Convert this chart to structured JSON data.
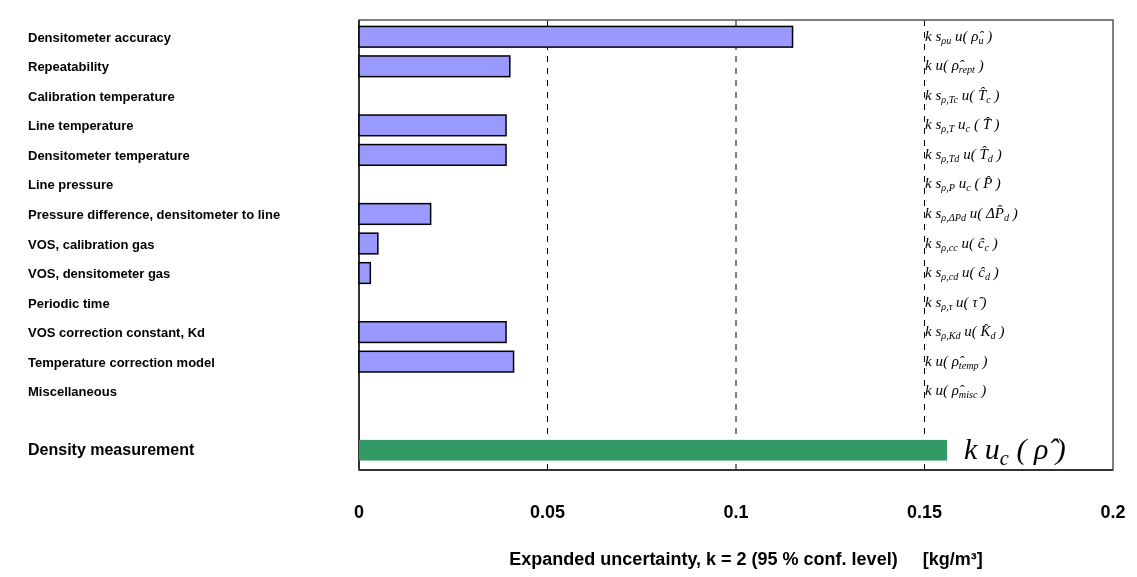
{
  "chart_data": {
    "type": "bar",
    "orientation": "horizontal",
    "categories": [
      "Densitometer accuracy",
      "Repeatability",
      "Calibration temperature",
      "Line temperature",
      "Densitometer temperature",
      "Line pressure",
      "Pressure difference, densitometer to line",
      "VOS, calibration gas",
      "VOS, densitometer gas",
      "Periodic time",
      "VOS correction constant, Kd",
      "Temperature correction model",
      "Miscellaneous",
      null,
      "Density measurement"
    ],
    "values": [
      0.115,
      0.04,
      null,
      0.039,
      0.039,
      null,
      0.019,
      0.005,
      0.003,
      null,
      0.039,
      0.041,
      null,
      null,
      0.156
    ],
    "colors": [
      "#9999ff",
      "#9999ff",
      null,
      "#9999ff",
      "#9999ff",
      null,
      "#9999ff",
      "#9999ff",
      "#9999ff",
      null,
      "#9999ff",
      "#9999ff",
      null,
      null,
      "#339966"
    ],
    "xlim": [
      0,
      0.2
    ],
    "xticks": [
      0,
      0.05,
      0.1,
      0.15,
      0.2
    ],
    "xlabel": "Expanded uncertainty, k = 2 (95 % conf. level)     [kg/m³]",
    "grid": "x",
    "line_style": "dashed",
    "annotations": [
      "k s$_{ρu}$ u( ρ̂$_{u}$ )",
      "k u( ρ̂$_{rept}$ )",
      "k s$_{ρ,Tc}$ u( T̂$_{c}$ )",
      "k s$_{ρ,T}$ u$_{c}$ ( T̂ )",
      "k s$_{ρ,Td}$ u( T̂$_{d}$ )",
      "k s$_{ρ,P}$ u$_{c}$ ( P̂ )",
      "k s$_{ρ,ΔPd}$ u( ΔP̂$_{d}$ )",
      "k s$_{ρ,cc}$ u( ĉ$_{c}$ )",
      "k s$_{ρ,cd}$ u( ĉ$_{d}$ )",
      "k s$_{ρ,τ}$ u( τ̂ )",
      "k s$_{ρ,Kd}$ u( K̂$_{d}$ )",
      "k u( ρ̂$_{temp}$ )",
      "k u( ρ̂$_{misc}$ )",
      "k u$_{c}$ ( ρ̂ )"
    ]
  }
}
